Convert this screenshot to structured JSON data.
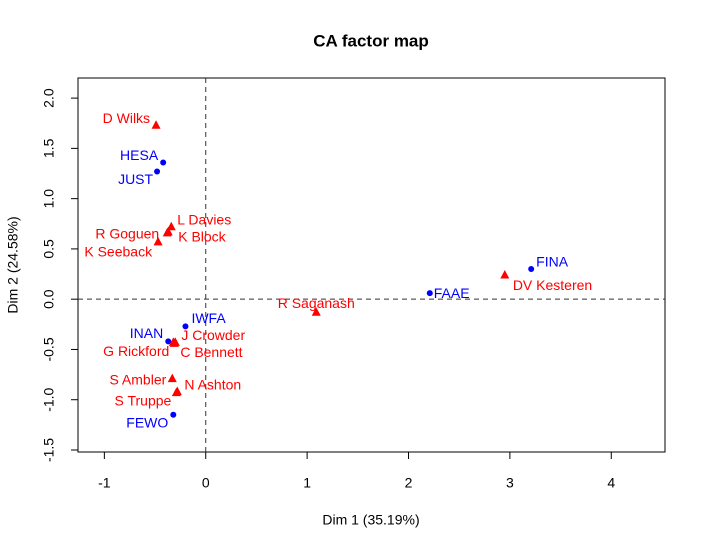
{
  "chart_data": {
    "type": "scatter",
    "title": "CA factor map",
    "x_label": "Dim 1 (35.19%)",
    "y_label": "Dim 2 (24.58%)",
    "xlim": [
      -1.26,
      4.53
    ],
    "ylim": [
      -1.52,
      2.2
    ],
    "xticks": [
      -1,
      0,
      1,
      2,
      3,
      4
    ],
    "yticks": [
      -1.5,
      {
        "value": -1,
        "label": "-1.0"
      },
      -0.5,
      {
        "value": 0,
        "label": "0.0"
      },
      0.5,
      {
        "value": 1,
        "label": "1.0"
      },
      1.5,
      {
        "value": 2,
        "label": "2.0"
      }
    ],
    "series": [
      {
        "color": "#0000ff",
        "marker": "circle",
        "labels": [
          "HESA",
          "JUST",
          "FINA",
          "FAAE",
          "IWFA",
          "INAN",
          "FEWO"
        ],
        "x": [
          -0.42,
          -0.48,
          3.21,
          2.21,
          -0.2,
          -0.37,
          -0.32
        ],
        "values": [
          1.36,
          1.27,
          0.3,
          0.06,
          -0.27,
          -0.42,
          -1.15
        ]
      },
      {
        "color": "#ff0000",
        "marker": "triangle",
        "labels": [
          "D Wilks",
          "L Davies",
          "K Block",
          "R Goguen",
          "K Seeback",
          "DV Kesteren",
          "R Saganash",
          "J Crowder",
          "G Rickford",
          "C Bennett",
          "S Ambler",
          "N Ashton",
          "S Truppe"
        ],
        "x": [
          -0.49,
          -0.34,
          -0.37,
          -0.38,
          -0.47,
          2.95,
          1.09,
          -0.3,
          -0.32,
          -0.31,
          -0.33,
          -0.28,
          -0.29
        ],
        "values": [
          1.73,
          0.72,
          0.67,
          0.66,
          0.57,
          0.24,
          -0.13,
          -0.43,
          -0.43,
          -0.44,
          -0.79,
          -0.92,
          -0.93
        ]
      }
    ]
  }
}
